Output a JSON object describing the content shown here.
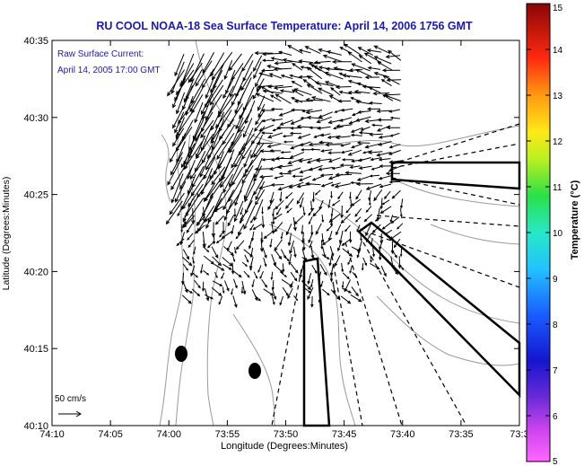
{
  "chart_data": {
    "type": "vector-field",
    "title": "RU COOL  NOAA-18  Sea Surface Temperature:  April 14, 2006 1756 GMT",
    "xlabel": "Longitude (Degrees:Minutes)",
    "ylabel": "Latitude (Degrees:Minutes)",
    "x_ticks": [
      "74:10",
      "74:05",
      "74:00",
      "73:55",
      "73:50",
      "73:45",
      "73:40",
      "73:35",
      "73:3"
    ],
    "y_ticks": [
      "40:10",
      "40:15",
      "40:20",
      "40:25",
      "40:30",
      "40:35"
    ],
    "xlim_minutes_west": [
      70,
      30
    ],
    "ylim_minutes_north": [
      10,
      35
    ],
    "annotation_lines": [
      "Raw Surface Current:",
      "April 14, 2005 17:00 GMT"
    ],
    "scale_label": "50 cm/s",
    "colorbar": {
      "label": "Temperature (°C)",
      "min": 5,
      "max": 15,
      "ticks": [
        "5",
        "6",
        "7",
        "8",
        "9",
        "10",
        "11",
        "12",
        "13",
        "14",
        "15"
      ]
    },
    "markers": [
      {
        "lon_min_w": 58.9,
        "lat_min_n": 14.6
      },
      {
        "lon_min_w": 52.3,
        "lat_min_n": 13.5
      }
    ],
    "colors": {
      "title": "#1a1ab0",
      "annotation": "#1a1ab0",
      "contours": "#9a9a9a",
      "vectors": "#000000"
    }
  }
}
